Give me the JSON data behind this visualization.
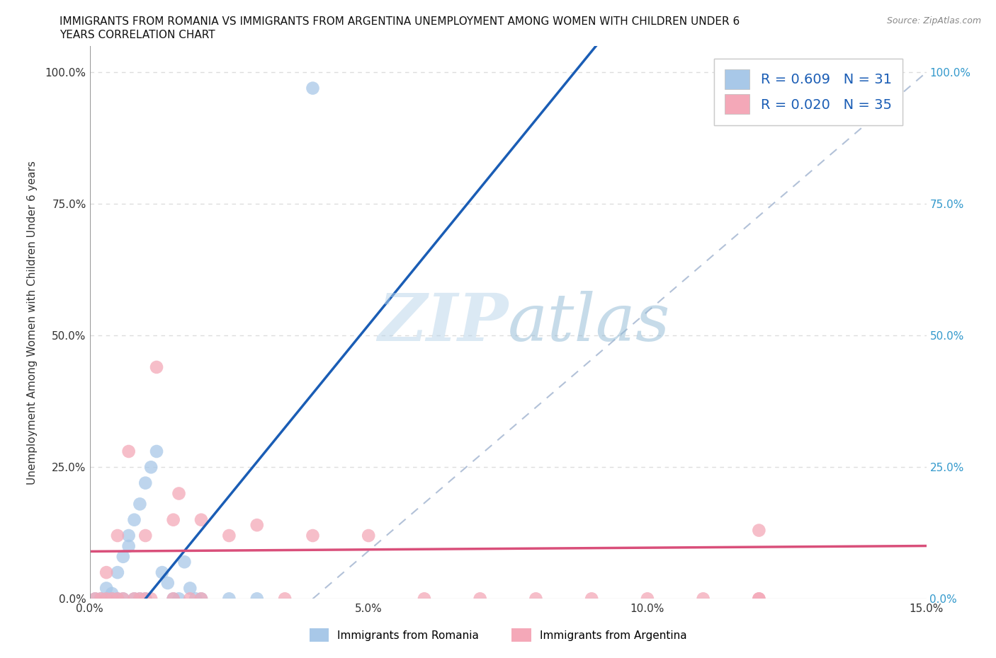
{
  "title_line1": "IMMIGRANTS FROM ROMANIA VS IMMIGRANTS FROM ARGENTINA UNEMPLOYMENT AMONG WOMEN WITH CHILDREN UNDER 6",
  "title_line2": "YEARS CORRELATION CHART",
  "source": "Source: ZipAtlas.com",
  "ylabel": "Unemployment Among Women with Children Under 6 years",
  "watermark": "ZIPatlas",
  "legend_label1": "Immigrants from Romania",
  "legend_label2": "Immigrants from Argentina",
  "R1": 0.609,
  "N1": 31,
  "R2": 0.02,
  "N2": 35,
  "color1": "#a8c8e8",
  "color2": "#f4a8b8",
  "trendline1_color": "#1a5db5",
  "trendline2_color": "#d94f7a",
  "diag_color": "#aabbd4",
  "romania_x": [
    0.001,
    0.002,
    0.003,
    0.003,
    0.004,
    0.004,
    0.005,
    0.005,
    0.006,
    0.006,
    0.007,
    0.007,
    0.008,
    0.008,
    0.009,
    0.009,
    0.01,
    0.01,
    0.011,
    0.012,
    0.013,
    0.014,
    0.015,
    0.016,
    0.017,
    0.018,
    0.019,
    0.02,
    0.025,
    0.03,
    0.04
  ],
  "romania_y": [
    0.0,
    0.0,
    0.0,
    0.02,
    0.0,
    0.01,
    0.0,
    0.05,
    0.08,
    0.0,
    0.1,
    0.12,
    0.0,
    0.15,
    0.0,
    0.18,
    0.0,
    0.22,
    0.25,
    0.28,
    0.05,
    0.03,
    0.0,
    0.0,
    0.07,
    0.02,
    0.0,
    0.0,
    0.0,
    0.0,
    0.97
  ],
  "argentina_x": [
    0.001,
    0.002,
    0.003,
    0.003,
    0.004,
    0.005,
    0.005,
    0.006,
    0.007,
    0.008,
    0.009,
    0.01,
    0.01,
    0.011,
    0.012,
    0.015,
    0.015,
    0.016,
    0.018,
    0.02,
    0.02,
    0.025,
    0.03,
    0.035,
    0.04,
    0.05,
    0.06,
    0.07,
    0.08,
    0.09,
    0.1,
    0.11,
    0.12,
    0.12,
    0.12
  ],
  "argentina_y": [
    0.0,
    0.0,
    0.0,
    0.05,
    0.0,
    0.12,
    0.0,
    0.0,
    0.28,
    0.0,
    0.0,
    0.12,
    0.0,
    0.0,
    0.44,
    0.15,
    0.0,
    0.2,
    0.0,
    0.15,
    0.0,
    0.12,
    0.14,
    0.0,
    0.12,
    0.12,
    0.0,
    0.0,
    0.0,
    0.0,
    0.0,
    0.0,
    0.13,
    0.0,
    0.0
  ],
  "xlim": [
    0.0,
    0.15
  ],
  "ylim": [
    0.0,
    1.05
  ],
  "yticks": [
    0.0,
    0.25,
    0.5,
    0.75,
    1.0
  ],
  "xticks": [
    0.0,
    0.05,
    0.1,
    0.15
  ],
  "background_color": "#ffffff",
  "grid_color": "#dddddd",
  "title_fontsize": 11,
  "source_fontsize": 9,
  "tick_fontsize": 11,
  "ylabel_fontsize": 11
}
